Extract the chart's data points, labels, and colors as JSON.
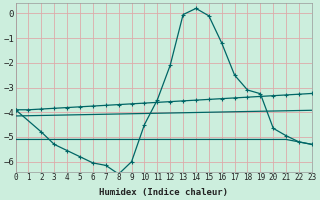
{
  "xlabel": "Humidex (Indice chaleur)",
  "bg_color": "#cceedd",
  "grid_color": "#ddaaaa",
  "line_color": "#006666",
  "xlim": [
    0,
    23
  ],
  "ylim": [
    -6.4,
    0.4
  ],
  "yticks": [
    0,
    -1,
    -2,
    -3,
    -4,
    -5,
    -6
  ],
  "xticks": [
    0,
    1,
    2,
    3,
    4,
    5,
    6,
    7,
    8,
    9,
    10,
    11,
    12,
    13,
    14,
    15,
    16,
    17,
    18,
    19,
    20,
    21,
    22,
    23
  ],
  "line1_x": [
    0,
    1,
    2,
    3,
    4,
    5,
    6,
    7,
    8,
    9,
    10,
    11,
    12,
    13,
    14,
    15,
    16,
    17,
    18,
    19,
    20,
    21,
    22,
    23
  ],
  "line1_y": [
    -3.9,
    -3.9,
    -3.87,
    -3.84,
    -3.81,
    -3.78,
    -3.75,
    -3.72,
    -3.69,
    -3.66,
    -3.63,
    -3.6,
    -3.57,
    -3.54,
    -3.51,
    -3.48,
    -3.45,
    -3.42,
    -3.39,
    -3.36,
    -3.33,
    -3.3,
    -3.27,
    -3.24
  ],
  "line2_x": [
    0,
    1,
    2,
    3,
    4,
    5,
    6,
    7,
    8,
    9,
    10,
    11,
    12,
    13,
    14,
    15,
    16,
    17,
    18,
    19,
    20,
    21,
    22,
    23
  ],
  "line2_y": [
    -4.15,
    -4.14,
    -4.13,
    -4.12,
    -4.11,
    -4.1,
    -4.09,
    -4.08,
    -4.07,
    -4.06,
    -4.05,
    -4.04,
    -4.03,
    -4.02,
    -4.01,
    -4.0,
    -3.99,
    -3.98,
    -3.97,
    -3.96,
    -3.95,
    -3.94,
    -3.93,
    -3.92
  ],
  "line3_x": [
    0,
    2,
    3,
    4,
    5,
    6,
    7,
    8,
    9,
    10,
    11,
    12,
    13,
    14,
    15,
    16,
    17,
    18,
    19,
    20,
    21,
    22,
    23
  ],
  "line3_y": [
    -3.9,
    -4.8,
    -5.3,
    -5.55,
    -5.8,
    -6.05,
    -6.15,
    -6.5,
    -6.0,
    -4.5,
    -3.5,
    -2.1,
    -0.05,
    0.2,
    -0.1,
    -1.2,
    -2.5,
    -3.1,
    -3.25,
    -4.65,
    -4.95,
    -5.2,
    -5.3
  ],
  "line4_x": [
    0,
    1,
    2,
    3,
    4,
    5,
    6,
    7,
    8,
    9,
    10,
    11,
    12,
    13,
    14,
    15,
    16,
    17,
    18,
    19,
    20,
    21,
    22,
    23
  ],
  "line4_y": [
    -5.1,
    -5.1,
    -5.1,
    -5.1,
    -5.1,
    -5.1,
    -5.1,
    -5.1,
    -5.1,
    -5.1,
    -5.1,
    -5.1,
    -5.1,
    -5.1,
    -5.1,
    -5.1,
    -5.1,
    -5.1,
    -5.1,
    -5.1,
    -5.1,
    -5.1,
    -5.2,
    -5.3
  ]
}
